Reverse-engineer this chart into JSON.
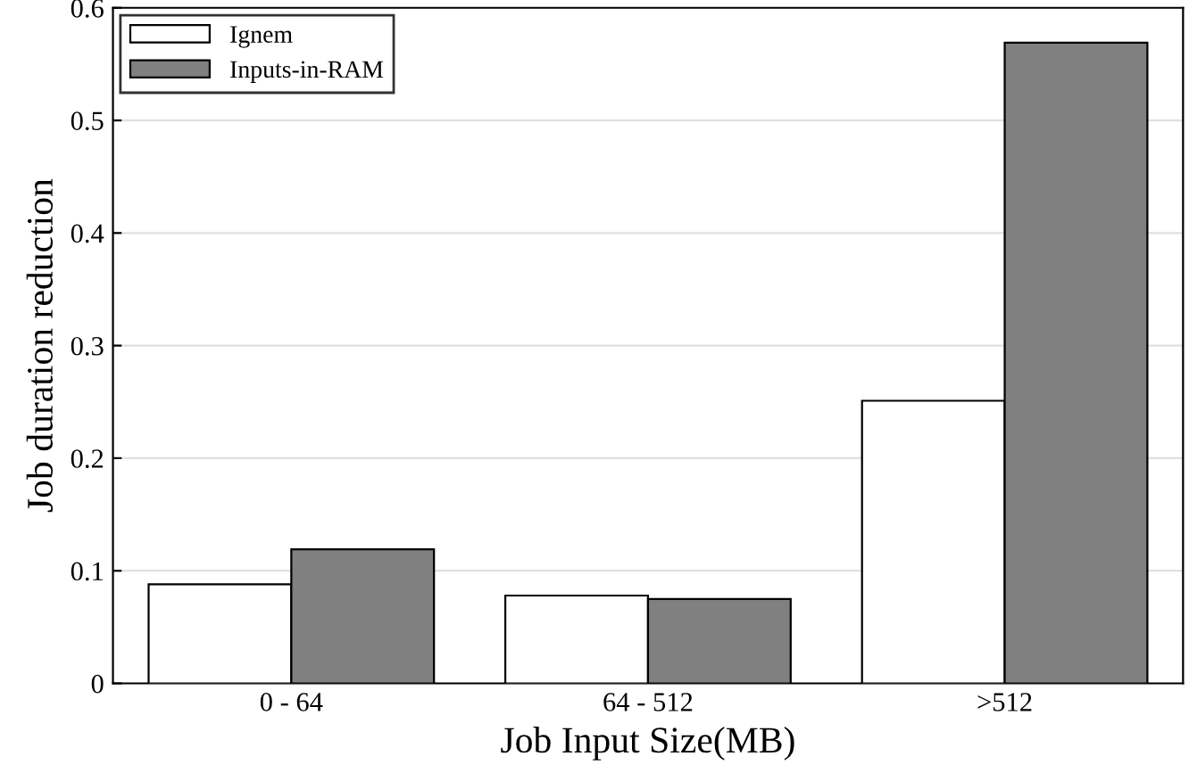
{
  "chart_data": {
    "type": "bar",
    "xlabel": "Job Input Size(MB)",
    "ylabel": "Job duration reduction",
    "categories": [
      "0 - 64",
      "64 - 512",
      ">512"
    ],
    "series": [
      {
        "name": "Ignem",
        "color": "#ffffff",
        "values": [
          0.088,
          0.078,
          0.251
        ]
      },
      {
        "name": "Inputs-in-RAM",
        "color": "#808080",
        "values": [
          0.119,
          0.075,
          0.569
        ]
      }
    ],
    "ylim": [
      0,
      0.6
    ],
    "yticks": [
      0,
      0.1,
      0.2,
      0.3,
      0.4,
      0.5,
      0.6
    ],
    "grid": "y",
    "legend": "top left"
  }
}
